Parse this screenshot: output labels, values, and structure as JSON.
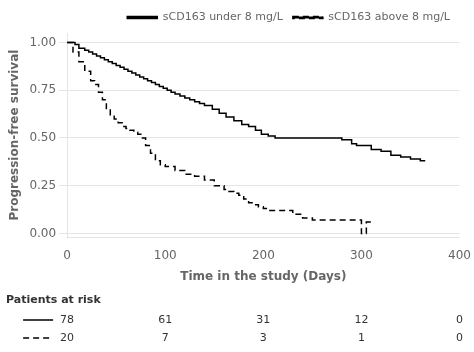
{
  "chart_data": {
    "type": "step",
    "xlabel": "Time in the study (Days)",
    "ylabel": "Progression-free survival",
    "xlim": [
      0,
      400
    ],
    "ylim": [
      -0.02,
      1.05
    ],
    "xticks": [
      0,
      100,
      200,
      300,
      400
    ],
    "yticks": [
      {
        "value": 0.0,
        "label": "0.00"
      },
      {
        "value": 0.25,
        "label": "0.25"
      },
      {
        "value": 0.5,
        "label": "0.50"
      },
      {
        "value": 0.75,
        "label": "0.75"
      },
      {
        "value": 1.0,
        "label": "1.00"
      }
    ],
    "grid": "y",
    "legend": "upper right",
    "series": [
      {
        "name": "sCD163 under 8 mg/L",
        "color": "black",
        "line_style": "solid",
        "x": [
          0,
          8,
          12,
          18,
          22,
          26,
          30,
          34,
          38,
          42,
          46,
          50,
          54,
          58,
          62,
          66,
          70,
          74,
          78,
          82,
          86,
          90,
          94,
          98,
          102,
          106,
          110,
          115,
          120,
          125,
          130,
          135,
          140,
          148,
          155,
          162,
          170,
          178,
          185,
          192,
          198,
          205,
          212,
          220,
          230,
          240,
          250,
          260,
          270,
          280,
          290,
          295,
          300,
          310,
          320,
          330,
          340,
          350,
          360,
          365
        ],
        "values": [
          1.0,
          0.99,
          0.97,
          0.96,
          0.95,
          0.94,
          0.93,
          0.92,
          0.91,
          0.9,
          0.89,
          0.88,
          0.87,
          0.86,
          0.85,
          0.84,
          0.83,
          0.82,
          0.81,
          0.8,
          0.79,
          0.78,
          0.77,
          0.76,
          0.75,
          0.74,
          0.73,
          0.72,
          0.71,
          0.7,
          0.69,
          0.68,
          0.67,
          0.65,
          0.63,
          0.61,
          0.59,
          0.57,
          0.56,
          0.54,
          0.52,
          0.51,
          0.5,
          0.5,
          0.5,
          0.5,
          0.5,
          0.5,
          0.5,
          0.49,
          0.47,
          0.46,
          0.46,
          0.44,
          0.43,
          0.41,
          0.4,
          0.39,
          0.38,
          0.38
        ]
      },
      {
        "name": "sCD163 above 8 mg/L",
        "color": "black",
        "line_style": "dashed",
        "x": [
          0,
          6,
          12,
          18,
          24,
          28,
          32,
          36,
          40,
          44,
          48,
          52,
          56,
          60,
          64,
          68,
          72,
          76,
          80,
          85,
          90,
          95,
          100,
          110,
          120,
          130,
          140,
          150,
          160,
          165,
          170,
          175,
          180,
          185,
          190,
          195,
          200,
          205,
          210,
          220,
          230,
          240,
          250,
          260,
          270,
          280,
          290,
          295,
          300,
          305,
          310
        ],
        "values": [
          1.0,
          0.95,
          0.9,
          0.85,
          0.8,
          0.78,
          0.74,
          0.7,
          0.65,
          0.62,
          0.6,
          0.58,
          0.56,
          0.55,
          0.54,
          0.53,
          0.52,
          0.5,
          0.46,
          0.42,
          0.38,
          0.36,
          0.35,
          0.33,
          0.31,
          0.3,
          0.28,
          0.25,
          0.23,
          0.22,
          0.21,
          0.2,
          0.18,
          0.16,
          0.15,
          0.14,
          0.13,
          0.12,
          0.12,
          0.12,
          0.1,
          0.08,
          0.07,
          0.07,
          0.07,
          0.07,
          0.07,
          0.07,
          0.0,
          0.06,
          0.06
        ]
      }
    ],
    "risk_table": {
      "title": "Patients at risk",
      "x": [
        0,
        100,
        200,
        300,
        400
      ],
      "rows": [
        {
          "line_style": "solid",
          "color": "black",
          "values": [
            78,
            61,
            31,
            12,
            0
          ]
        },
        {
          "line_style": "dashed",
          "color": "black",
          "values": [
            20,
            7,
            3,
            1,
            0
          ]
        }
      ]
    }
  }
}
